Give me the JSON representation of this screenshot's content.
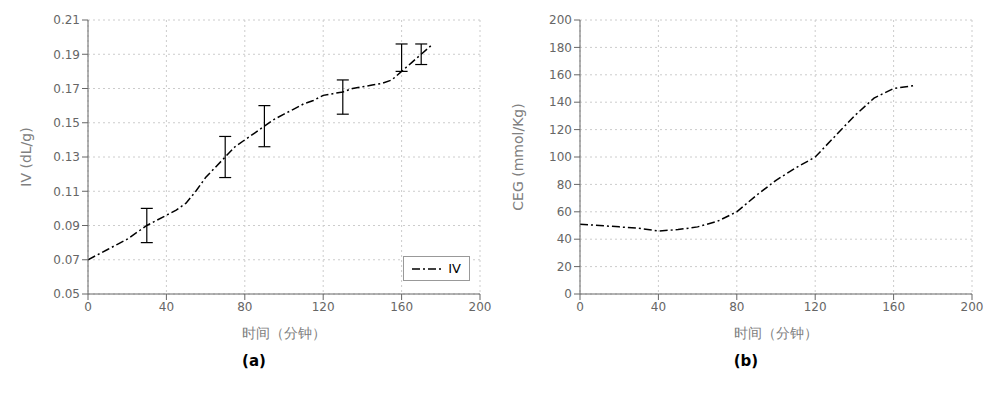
{
  "chart_data": [
    {
      "type": "line",
      "title": "(a)",
      "xlabel": "时间（分钟）",
      "ylabel": "IV (dL/g)",
      "x": [
        0,
        5,
        10,
        15,
        20,
        25,
        30,
        35,
        40,
        45,
        50,
        55,
        60,
        65,
        70,
        75,
        80,
        85,
        90,
        95,
        100,
        105,
        110,
        115,
        120,
        125,
        130,
        135,
        140,
        145,
        150,
        155,
        160,
        165,
        170,
        175
      ],
      "series": [
        {
          "name": "IV",
          "color": "#000000",
          "line_style": "dashdot",
          "marker": "none",
          "values": [
            0.07,
            0.073,
            0.076,
            0.079,
            0.082,
            0.086,
            0.09,
            0.093,
            0.096,
            0.099,
            0.103,
            0.11,
            0.118,
            0.124,
            0.13,
            0.136,
            0.14,
            0.144,
            0.148,
            0.152,
            0.155,
            0.158,
            0.161,
            0.163,
            0.166,
            0.167,
            0.168,
            0.17,
            0.171,
            0.172,
            0.173,
            0.175,
            0.18,
            0.185,
            0.19,
            0.195
          ]
        }
      ],
      "error_bars": {
        "x": [
          30,
          70,
          90,
          130,
          160,
          170
        ],
        "values": [
          0.09,
          0.13,
          0.148,
          0.165,
          0.188,
          0.19
        ],
        "errors": [
          0.01,
          0.012,
          0.012,
          0.01,
          0.008,
          0.006
        ]
      },
      "xlim": [
        0,
        200
      ],
      "ylim": [
        0.05,
        0.21
      ],
      "xticks": [
        0,
        40,
        80,
        120,
        160,
        200
      ],
      "yticks": [
        0.05,
        0.07,
        0.09,
        0.11,
        0.13,
        0.15,
        0.17,
        0.19,
        0.21
      ],
      "grid": true,
      "legend": "lower right"
    },
    {
      "type": "line",
      "title": "(b)",
      "xlabel": "时间（分钟）",
      "ylabel": "CEG (mmol/Kg)",
      "x": [
        0,
        10,
        20,
        30,
        40,
        50,
        60,
        70,
        80,
        90,
        100,
        110,
        120,
        130,
        140,
        150,
        160,
        170
      ],
      "series": [
        {
          "color": "#000000",
          "line_style": "dashdot",
          "marker": "none",
          "values": [
            51,
            50,
            49,
            48,
            46,
            47,
            49,
            53,
            60,
            72,
            83,
            92,
            100,
            115,
            130,
            143,
            150,
            152
          ]
        }
      ],
      "xlim": [
        0,
        200
      ],
      "ylim": [
        0,
        200
      ],
      "xticks": [
        0,
        40,
        80,
        120,
        160,
        200
      ],
      "yticks": [
        0,
        20,
        40,
        60,
        80,
        100,
        120,
        140,
        160,
        180,
        200
      ],
      "grid": true
    }
  ]
}
